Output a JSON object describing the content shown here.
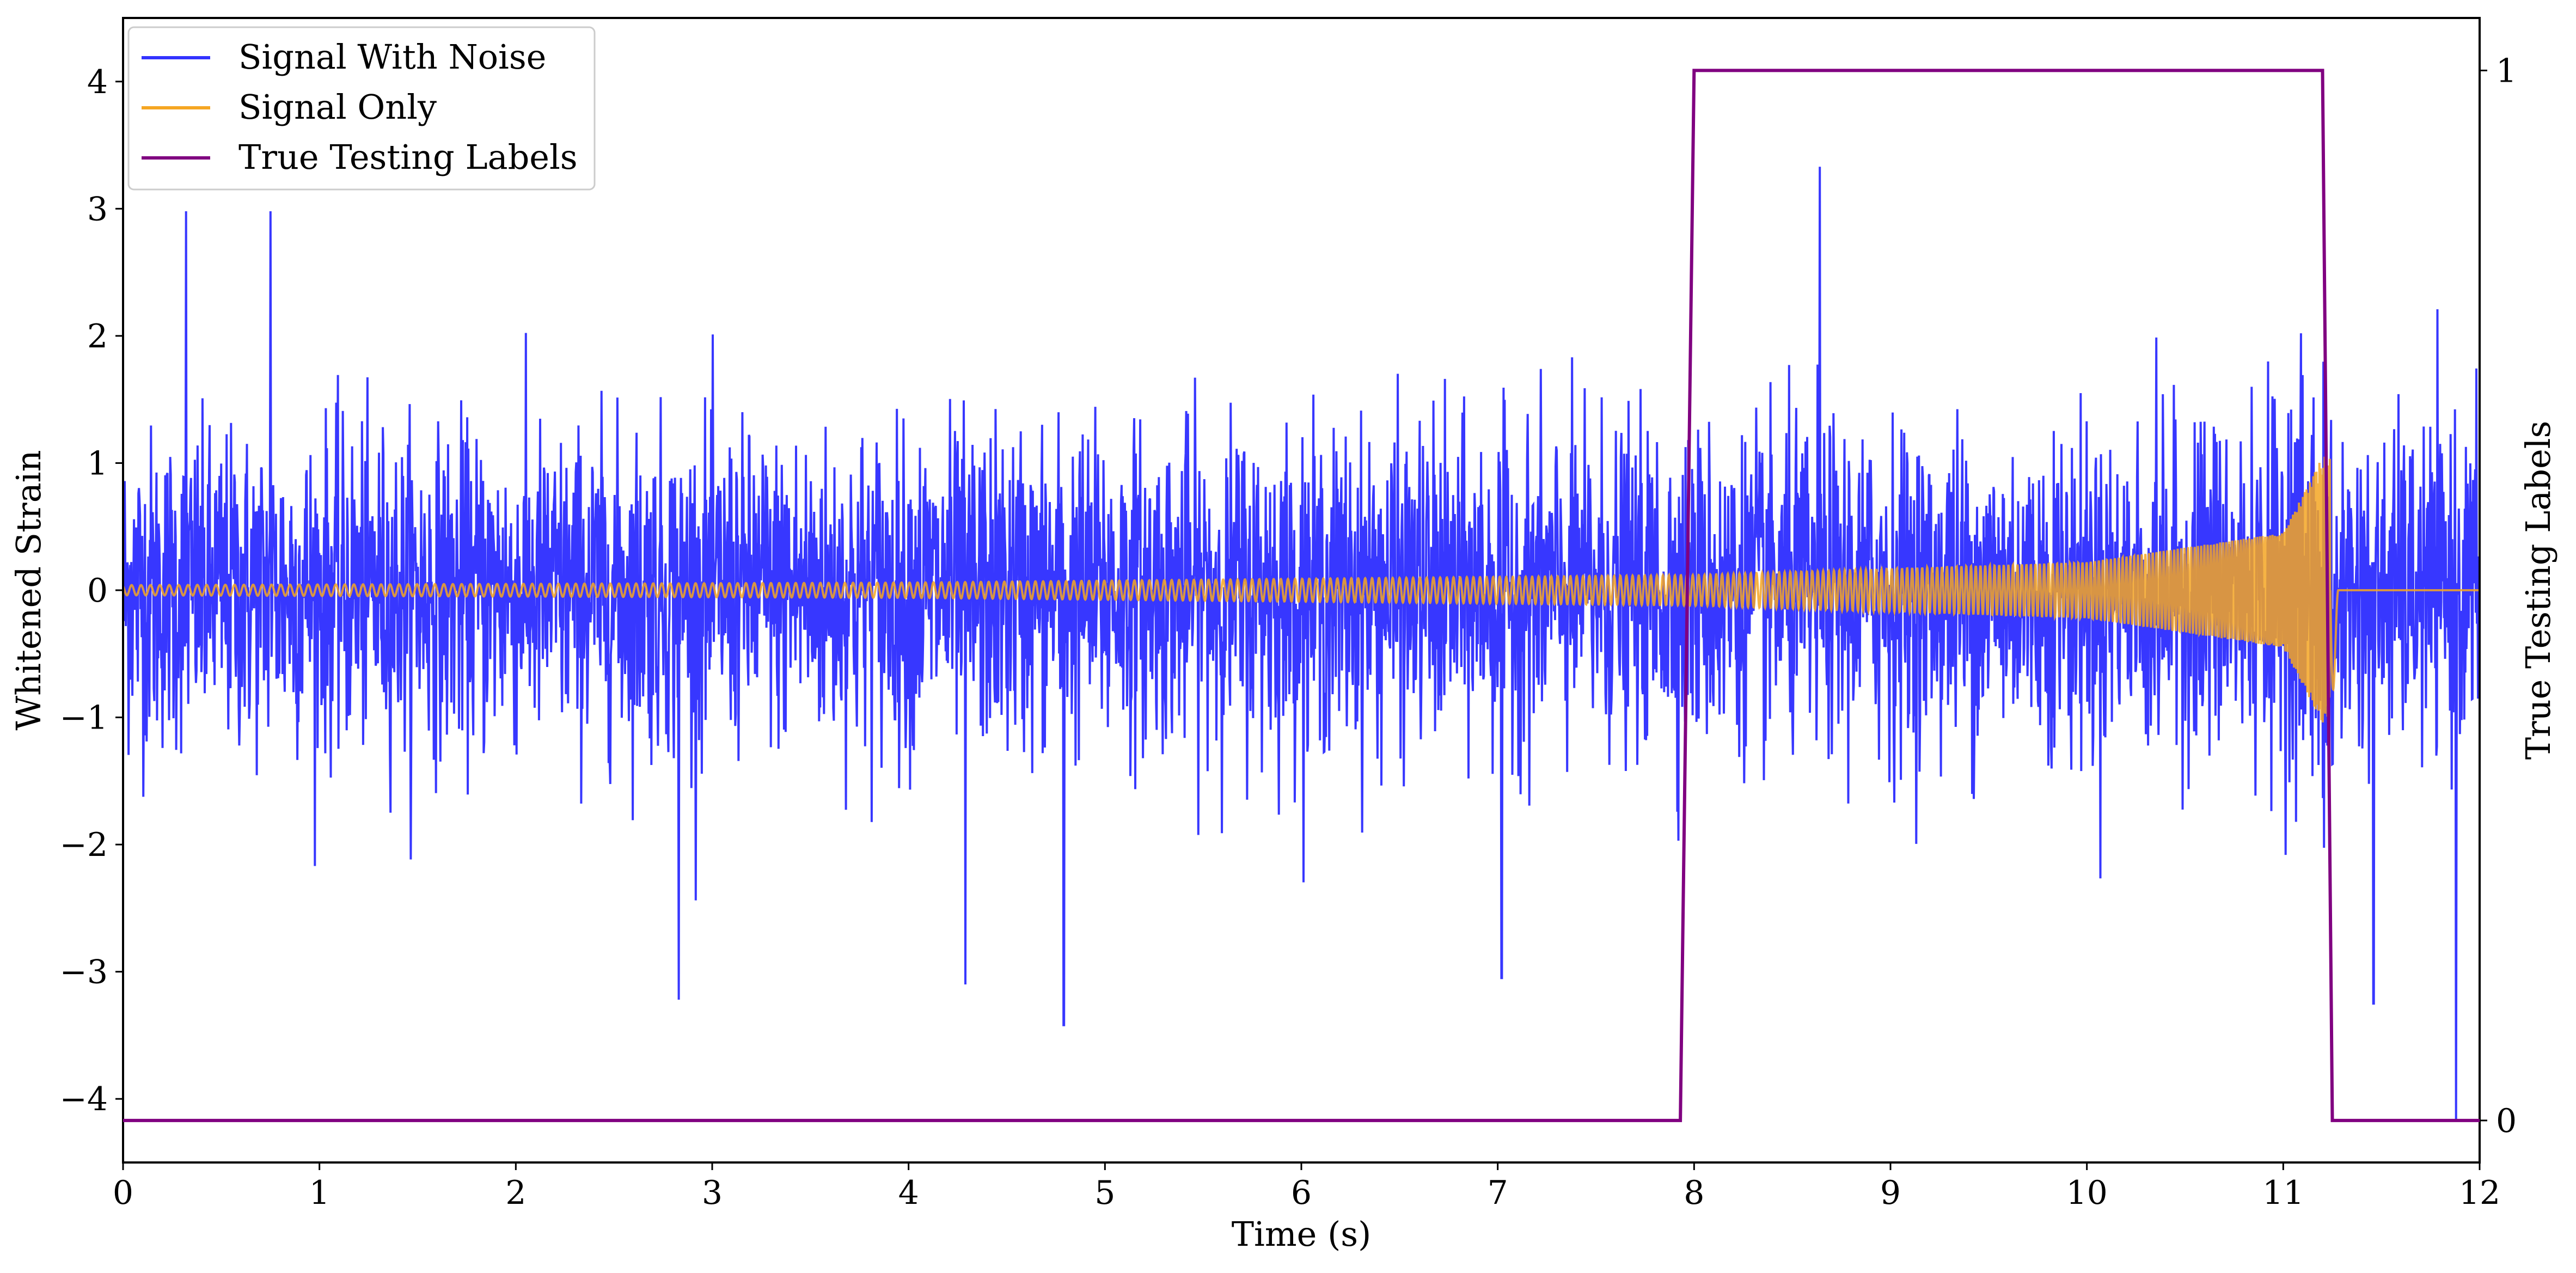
{
  "chart_data": {
    "type": "line",
    "xlabel": "Time (s)",
    "ylabel": "Whitened Strain",
    "y2label": "True Testing Labels",
    "xlim": [
      0,
      12
    ],
    "ylim": [
      -4.5,
      4.5
    ],
    "y2lim": [
      -0.04,
      1.05
    ],
    "x_ticks": [
      0,
      1,
      2,
      3,
      4,
      5,
      6,
      7,
      8,
      9,
      10,
      11,
      12
    ],
    "y_ticks": [
      -4,
      -3,
      -2,
      -1,
      0,
      1,
      2,
      3,
      4
    ],
    "y2_ticks": [
      0,
      1
    ],
    "grid": false,
    "legend": {
      "placement": "top-left",
      "entries": [
        "Signal With Noise",
        "Signal Only",
        "True Testing Labels"
      ]
    },
    "series": [
      {
        "name": "Signal With Noise",
        "color": "#3333ff",
        "axis": "left",
        "description_values": {
          "x_start": 0,
          "x_end": 12,
          "typical_band": [
            -1.5,
            1.5
          ],
          "extreme_max": 3.33,
          "extreme_min": -4.18,
          "notable_peaks": [
            {
              "x": 0.32,
              "y": 2.98
            },
            {
              "x": 0.75,
              "y": 2.98
            },
            {
              "x": 2.83,
              "y": -3.22
            },
            {
              "x": 4.29,
              "y": -3.1
            },
            {
              "x": 4.79,
              "y": -3.42
            },
            {
              "x": 7.02,
              "y": -3.05
            },
            {
              "x": 8.64,
              "y": 3.33
            },
            {
              "x": 11.46,
              "y": -3.25
            },
            {
              "x": 11.88,
              "y": -4.18
            }
          ]
        }
      },
      {
        "name": "Signal Only",
        "color": "#f5a623",
        "axis": "left",
        "chirp": {
          "x_start": 0,
          "merger_x": 11.24,
          "end_x": 12,
          "amplitude_at": [
            [
              0,
              0.04
            ],
            [
              4,
              0.06
            ],
            [
              8,
              0.12
            ],
            [
              10,
              0.22
            ],
            [
              11,
              0.45
            ],
            [
              11.2,
              1.05
            ]
          ],
          "ringdown_min": -1.35,
          "post_merger_value": 0
        }
      },
      {
        "name": "True Testing Labels",
        "color": "#800080",
        "axis": "right",
        "x": [
          0,
          7.93,
          8.0,
          11.2,
          11.25,
          12
        ],
        "y": [
          0,
          0,
          1,
          1,
          0,
          0
        ]
      }
    ]
  }
}
